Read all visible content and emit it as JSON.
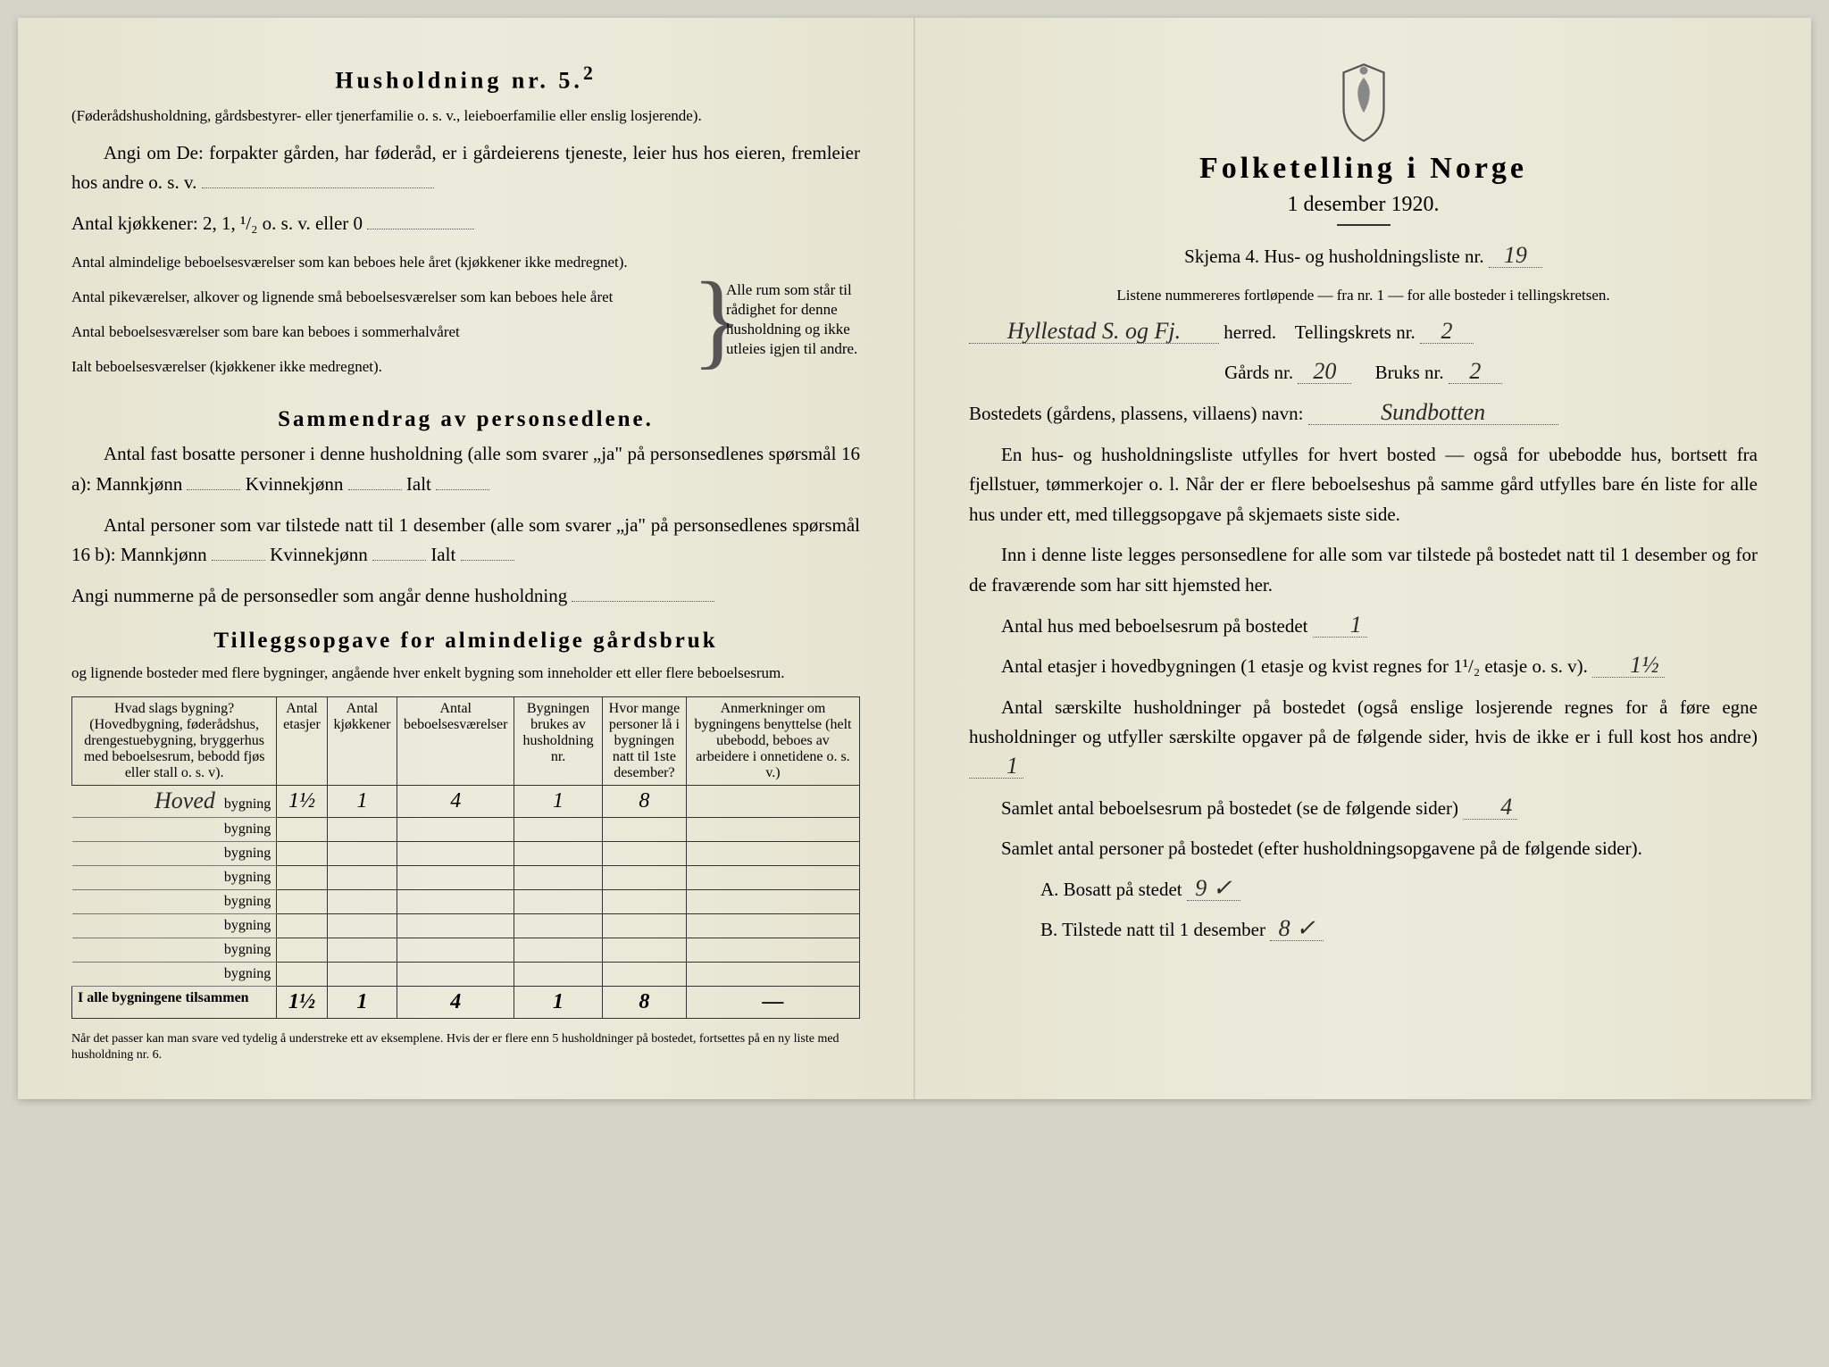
{
  "left": {
    "heading": "Husholdning nr. 5.",
    "heading_sup": "2",
    "intro1": "(Føderådshusholdning, gårdsbestyrer- eller tjenerfamilie o. s. v., leieboerfamilie eller enslig losjerende).",
    "intro2": "Angi om De: forpakter gården, har føderåd, er i gårdeierens tjeneste, leier hus hos eieren, fremleier hos andre o. s. v.",
    "kjokken_label": "Antal kjøkkener: 2, 1, ¹/₂ o. s. v. eller 0",
    "rooms": {
      "l1": "Antal almindelige beboelsesværelser som kan beboes hele året (kjøkkener ikke medregnet).",
      "l2": "Antal pikeværelser, alkover og lignende små beboelsesværelser som kan beboes hele året",
      "l3": "Antal beboelsesværelser som bare kan beboes i sommerhalvåret",
      "l4": "Ialt beboelsesværelser (kjøkkener ikke medregnet).",
      "brace": "Alle rum som står til rådighet for denne husholdning og ikke utleies igjen til andre."
    },
    "section2": "Sammendrag av personsedlene.",
    "s2_l1a": "Antal fast bosatte personer i denne husholdning (alle som svarer „ja\" på personsedlenes spørsmål 16 a): Mannkjønn",
    "s2_l1b": "Kvinnekjønn",
    "s2_l1c": "Ialt",
    "s2_l2a": "Antal personer som var tilstede natt til 1 desember (alle som svarer „ja\" på personsedlenes spørsmål 16 b): Mannkjønn",
    "s2_nums": "Angi nummerne på de personsedler som angår denne husholdning",
    "section3": "Tilleggsopgave for almindelige gårdsbruk",
    "s3_sub": "og lignende bosteder med flere bygninger, angående hver enkelt bygning som inneholder ett eller flere beboelsesrum.",
    "table": {
      "headers": [
        "Hvad slags bygning?\n(Hovedbygning, føderådshus, drengestuebygning, bryggerhus med beboelsesrum, bebodd fjøs eller stall o. s. v).",
        "Antal etasjer",
        "Antal kjøkkener",
        "Antal beboelsesværelser",
        "Bygningen brukes av husholdning nr.",
        "Hvor mange personer lå i bygningen natt til 1ste desember?",
        "Anmerkninger om bygningens benyttelse (helt ubebodd, beboes av arbeidere i onnetidene o. s. v.)"
      ],
      "row1_name": "Hoved",
      "bygning_word": "bygning",
      "row1": [
        "1½",
        "1",
        "4",
        "1",
        "8",
        ""
      ],
      "sum_label": "I alle bygningene tilsammen",
      "sum": [
        "1½",
        "1",
        "4",
        "1",
        "8",
        "—"
      ]
    },
    "footnote": "Når det passer kan man svare ved tydelig å understreke ett av eksemplene.\nHvis der er flere enn 5 husholdninger på bostedet, fortsettes på en ny liste med husholdning nr. 6."
  },
  "right": {
    "title": "Folketelling i Norge",
    "date": "1 desember 1920.",
    "skjema": "Skjema 4. Hus- og husholdningsliste nr.",
    "skjema_val": "19",
    "listenote": "Listene nummereres fortløpende — fra nr. 1 — for alle bosteder i tellingskretsen.",
    "herred_val": "Hyllestad S. og Fj.",
    "herred_label": "herred.",
    "tellingskrets": "Tellingskrets nr.",
    "tellingskrets_val": "2",
    "gards": "Gårds nr.",
    "gards_val": "20",
    "bruks": "Bruks nr.",
    "bruks_val": "2",
    "bosted": "Bostedets (gårdens, plassens, villaens) navn:",
    "bosted_val": "Sundbotten",
    "p1": "En hus- og husholdningsliste utfylles for hvert bosted — også for ubebodde hus, bortsett fra fjellstuer, tømmerkojer o. l. Når der er flere beboelseshus på samme gård utfylles bare én liste for alle hus under ett, med tilleggsopgave på skjemaets siste side.",
    "p2": "Inn i denne liste legges personsedlene for alle som var tilstede på bostedet natt til 1 desember og for de fraværende som har sitt hjemsted her.",
    "q1": "Antal hus med beboelsesrum på bostedet",
    "q1_val": "1",
    "q2": "Antal etasjer i hovedbygningen (1 etasje og kvist regnes for 1¹/₂ etasje o. s. v).",
    "q2_val": "1½",
    "q3": "Antal særskilte husholdninger på bostedet (også enslige losjerende regnes for å føre egne husholdninger og utfyller særskilte opgaver på de følgende sider, hvis de ikke er i full kost hos andre)",
    "q3_val": "1",
    "q4": "Samlet antal beboelsesrum på bostedet (se de følgende sider)",
    "q4_val": "4",
    "q5": "Samlet antal personer på bostedet (efter husholdningsopgavene på de følgende sider).",
    "qA": "A. Bosatt på stedet",
    "qA_val": "9 ✓",
    "qB": "B. Tilstede natt til 1 desember",
    "qB_val": "8 ✓"
  },
  "colors": {
    "paper": "#e8e6d4",
    "ink": "#2a2a2a",
    "hand": "#2a2a2a"
  }
}
